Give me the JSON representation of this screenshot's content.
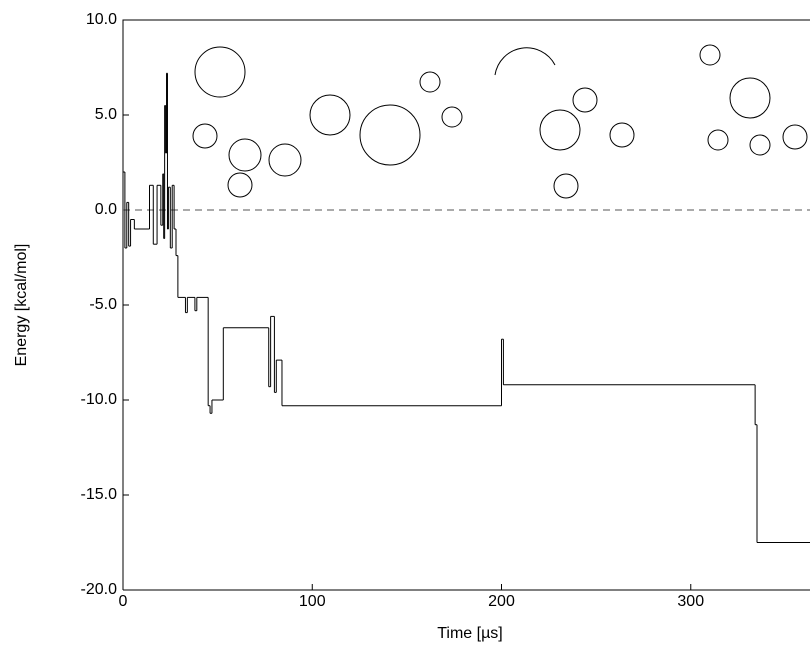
{
  "chart_data": {
    "type": "step",
    "x_label": "Time [µs]",
    "y_label": "Energy [kcal/mol]",
    "xlim": [
      0,
      363
    ],
    "ylim": [
      -20,
      10
    ],
    "xticks": [
      0,
      100,
      200,
      300
    ],
    "yticks": [
      {
        "value": 10,
        "label": "10.0"
      },
      {
        "value": 5,
        "label": "5.0"
      },
      {
        "value": 0,
        "label": "0.0"
      },
      {
        "value": -5,
        "label": "-5.0"
      },
      {
        "value": -10,
        "label": "-10.0"
      },
      {
        "value": -15,
        "label": "-15.0"
      },
      {
        "value": -20,
        "label": "-20.0"
      }
    ],
    "hline": 0,
    "color": "#000000",
    "x": [
      0,
      1,
      2,
      3,
      4,
      6,
      14,
      16,
      18,
      20,
      21,
      21.5,
      22,
      22.5,
      23,
      23.5,
      24,
      25,
      26,
      27,
      28,
      29,
      33,
      34,
      38,
      39,
      45,
      46,
      47,
      53,
      77,
      78,
      80,
      81,
      84,
      200,
      201,
      334,
      335
    ],
    "values": [
      2.0,
      -2.0,
      0.4,
      -1.9,
      -0.5,
      -1.0,
      1.3,
      -1.8,
      1.3,
      -0.8,
      1.9,
      -1.5,
      5.5,
      3.0,
      7.2,
      -1.0,
      1.2,
      -2.0,
      1.3,
      -1.0,
      -2.4,
      -4.6,
      -5.4,
      -4.6,
      -5.3,
      -4.6,
      -10.3,
      -10.7,
      -10.0,
      -6.2,
      -9.3,
      -5.6,
      -9.6,
      -7.9,
      -10.3,
      -6.8,
      -9.2,
      -11.3,
      -17.5
    ]
  }
}
